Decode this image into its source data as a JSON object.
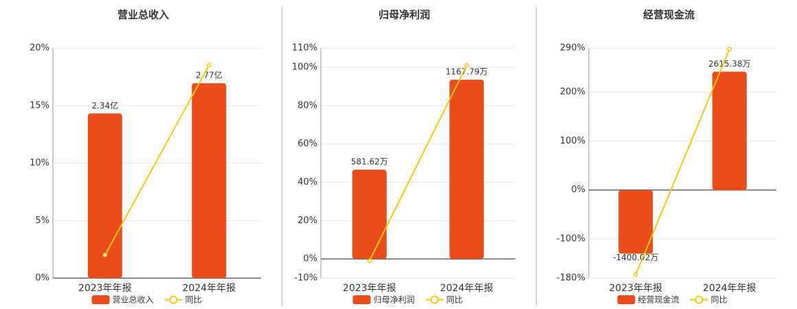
{
  "chart_data": [
    {
      "type": "bar",
      "title": "营业总收入",
      "categories": [
        "2023年年报",
        "2024年年报"
      ],
      "ylim": [
        0,
        20
      ],
      "yticks": [
        {
          "value": 0,
          "label": "0%"
        },
        {
          "value": 5,
          "label": "5%"
        },
        {
          "value": 10,
          "label": "10%"
        },
        {
          "value": 15,
          "label": "15%"
        },
        {
          "value": 20,
          "label": "20%"
        }
      ],
      "y2lim": [
        0,
        3.27
      ],
      "grid": true,
      "series": [
        {
          "name": "营业总收入",
          "type": "bar",
          "axis": "y2",
          "color": "#e84c1a",
          "values": [
            2.34,
            2.77
          ],
          "value_labels": [
            "2.34亿",
            "2.77亿"
          ]
        },
        {
          "name": "同比",
          "type": "line",
          "color": "#f2c811",
          "values": [
            2,
            18.5
          ]
        }
      ]
    },
    {
      "type": "bar",
      "title": "归母净利润",
      "categories": [
        "2023年年报",
        "2024年年报"
      ],
      "ylim": [
        -10,
        110
      ],
      "yticks": [
        {
          "value": -10,
          "label": "-10%"
        },
        {
          "value": 0,
          "label": "0%"
        },
        {
          "value": 20,
          "label": "20%"
        },
        {
          "value": 40,
          "label": "40%"
        },
        {
          "value": 60,
          "label": "60%"
        },
        {
          "value": 80,
          "label": "80%"
        },
        {
          "value": 100,
          "label": "100%"
        },
        {
          "value": 110,
          "label": "110%"
        }
      ],
      "y2lim": [
        -125,
        1374
      ],
      "grid": true,
      "series": [
        {
          "name": "归母净利润",
          "type": "bar",
          "axis": "y2",
          "color": "#e84c1a",
          "values": [
            581.62,
            1167.79
          ],
          "value_labels": [
            "581.62万",
            "1167.79万"
          ]
        },
        {
          "name": "同比",
          "type": "line",
          "color": "#f2c811",
          "values": [
            -1,
            101
          ]
        }
      ]
    },
    {
      "type": "bar",
      "title": "经营现金流",
      "categories": [
        "2023年年报",
        "2024年年报"
      ],
      "ylim": [
        -180,
        290
      ],
      "yticks": [
        {
          "value": -180,
          "label": "-180%"
        },
        {
          "value": -100,
          "label": "-100%"
        },
        {
          "value": 0,
          "label": "0%"
        },
        {
          "value": 100,
          "label": "100%"
        },
        {
          "value": 200,
          "label": "200%"
        },
        {
          "value": 290,
          "label": "290%"
        }
      ],
      "y2lim": [
        -1939,
        3136
      ],
      "grid": true,
      "series": [
        {
          "name": "经营现金流",
          "type": "bar",
          "axis": "y2",
          "color": "#e84c1a",
          "values": [
            -1400.02,
            2615.38
          ],
          "value_labels": [
            "-1400.02万",
            "2615.38万"
          ]
        },
        {
          "name": "同比",
          "type": "line",
          "color": "#f2c811",
          "values": [
            -173,
            288
          ]
        }
      ]
    }
  ]
}
